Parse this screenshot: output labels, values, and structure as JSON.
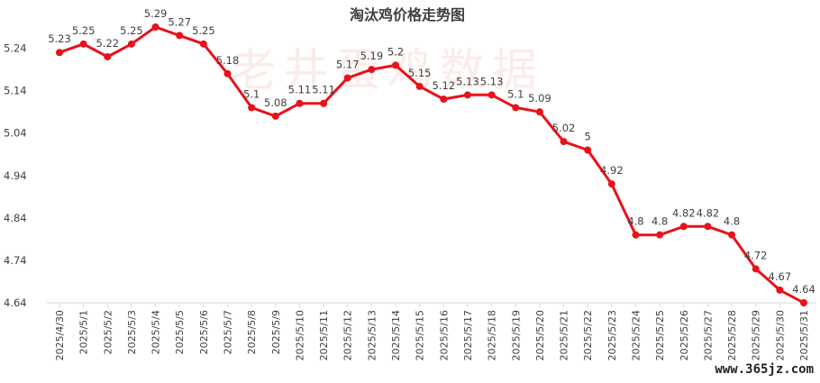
{
  "chart_data": {
    "type": "line",
    "title": "淘汰鸡价格走势图",
    "xlabel": "",
    "ylabel": "",
    "ylim": [
      4.64,
      5.29
    ],
    "yticks": [
      "5.24",
      "5.14",
      "5.04",
      "4.94",
      "4.84",
      "4.74",
      "4.64"
    ],
    "grid": false,
    "categories": [
      "2025/4/30",
      "2025/5/1",
      "2025/5/2",
      "2025/5/3",
      "2025/5/4",
      "2025/5/5",
      "2025/5/6",
      "2025/5/7",
      "2025/5/8",
      "2025/5/9",
      "2025/5/10",
      "2025/5/11",
      "2025/5/12",
      "2025/5/13",
      "2025/5/14",
      "2025/5/15",
      "2025/5/16",
      "2025/5/17",
      "2025/5/18",
      "2025/5/19",
      "2025/5/20",
      "2025/5/21",
      "2025/5/22",
      "2025/5/23",
      "2025/5/24",
      "2025/5/25",
      "2025/5/26",
      "2025/5/27",
      "2025/5/28",
      "2025/5/29",
      "2025/5/30",
      "2025/5/31"
    ],
    "series": [
      {
        "values": [
          5.23,
          5.25,
          5.22,
          5.25,
          5.29,
          5.27,
          5.25,
          5.18,
          5.1,
          5.08,
          5.11,
          5.11,
          5.17,
          5.19,
          5.2,
          5.15,
          5.12,
          5.13,
          5.13,
          5.1,
          5.09,
          5.02,
          5,
          4.92,
          4.8,
          4.8,
          4.82,
          4.82,
          4.8,
          4.72,
          4.67,
          4.64
        ],
        "color": "#e8121a"
      }
    ],
    "watermark": "老井蛋鸡数据",
    "site": "www.365jz.com"
  }
}
